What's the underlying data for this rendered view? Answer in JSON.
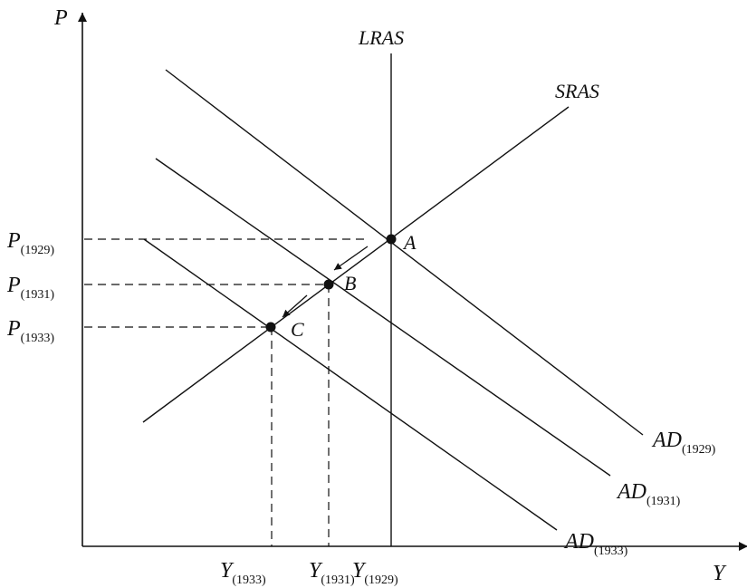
{
  "axes": {
    "y_label": "P",
    "x_label": "Y"
  },
  "curves": {
    "lras": "LRAS",
    "sras": "SRAS",
    "ad_1929": {
      "main": "AD",
      "sub": "(1929)"
    },
    "ad_1931": {
      "main": "AD",
      "sub": "(1931)"
    },
    "ad_1933": {
      "main": "AD",
      "sub": "(1933)"
    }
  },
  "points": {
    "a": "A",
    "b": "B",
    "c": "C"
  },
  "price_labels": {
    "p1929": {
      "main": "P",
      "sub": "(1929)"
    },
    "p1931": {
      "main": "P",
      "sub": "(1931)"
    },
    "p1933": {
      "main": "P",
      "sub": "(1933)"
    }
  },
  "output_labels": {
    "y1933": {
      "main": "Y",
      "sub": "(1933)"
    },
    "y1931": {
      "main": "Y",
      "sub": "(1931)"
    },
    "y1929": {
      "main": "Y",
      "sub": "(1929)"
    }
  }
}
